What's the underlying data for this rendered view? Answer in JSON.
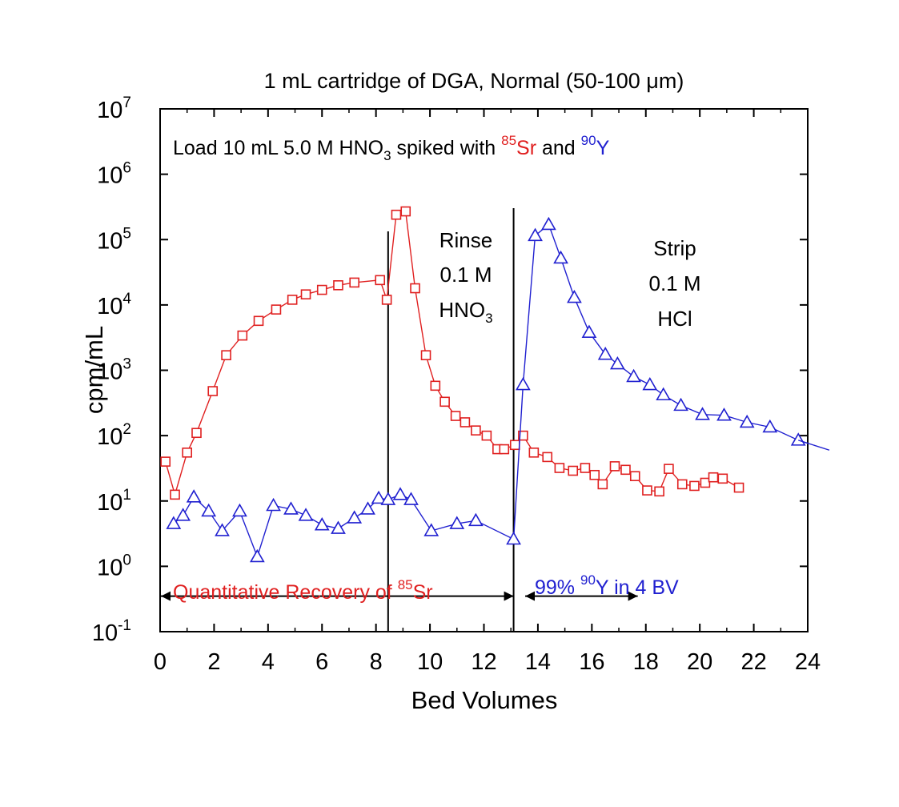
{
  "chart_data": {
    "type": "scatter",
    "title": "1 mL cartridge of DGA, Normal (50-100 μm)",
    "xlabel": "Bed Volumes",
    "ylabel": "cpm/mL",
    "xlim": [
      0,
      24
    ],
    "ylim": [
      0.1,
      10000000
    ],
    "yscale": "log",
    "x_ticks": [
      "0",
      "2",
      "4",
      "6",
      "8",
      "10",
      "12",
      "14",
      "16",
      "18",
      "20",
      "22",
      "24"
    ],
    "y_ticks": [
      {
        "base": "10",
        "exp": "-1"
      },
      {
        "base": "10",
        "exp": "0"
      },
      {
        "base": "10",
        "exp": "1"
      },
      {
        "base": "10",
        "exp": "2"
      },
      {
        "base": "10",
        "exp": "3"
      },
      {
        "base": "10",
        "exp": "4"
      },
      {
        "base": "10",
        "exp": "5"
      },
      {
        "base": "10",
        "exp": "6"
      },
      {
        "base": "10",
        "exp": "7"
      }
    ],
    "grid": false,
    "series": [
      {
        "color": "#e02020",
        "marker": "square",
        "points": [
          [
            0.2,
            40
          ],
          [
            0.55,
            12.5
          ],
          [
            1.0,
            55
          ],
          [
            1.35,
            110
          ],
          [
            1.95,
            480
          ],
          [
            2.45,
            1700
          ],
          [
            3.05,
            3400
          ],
          [
            3.65,
            5700
          ],
          [
            4.3,
            8500
          ],
          [
            4.9,
            12000
          ],
          [
            5.4,
            14500
          ],
          [
            6.0,
            17000
          ],
          [
            6.6,
            20000
          ],
          [
            7.2,
            22000
          ],
          [
            8.15,
            24000
          ],
          [
            8.4,
            12000
          ],
          [
            8.75,
            240000
          ],
          [
            9.1,
            270000
          ],
          [
            9.45,
            18000
          ],
          [
            9.85,
            1700
          ],
          [
            10.2,
            580
          ],
          [
            10.55,
            330
          ],
          [
            10.95,
            200
          ],
          [
            11.3,
            160
          ],
          [
            11.7,
            120
          ],
          [
            12.1,
            100
          ],
          [
            12.5,
            62
          ],
          [
            12.75,
            62
          ],
          [
            13.15,
            72
          ],
          [
            13.45,
            100
          ],
          [
            13.85,
            55
          ],
          [
            14.35,
            47
          ],
          [
            14.8,
            32
          ],
          [
            15.3,
            29
          ],
          [
            15.75,
            32
          ],
          [
            16.1,
            25
          ],
          [
            16.4,
            18
          ],
          [
            16.85,
            34
          ],
          [
            17.25,
            30
          ],
          [
            17.6,
            24
          ],
          [
            18.05,
            14.5
          ],
          [
            18.5,
            14
          ],
          [
            18.85,
            31
          ],
          [
            19.35,
            18
          ],
          [
            19.8,
            17
          ],
          [
            20.2,
            19
          ],
          [
            20.5,
            23
          ],
          [
            20.85,
            22
          ],
          [
            21.45,
            16
          ]
        ]
      },
      {
        "color": "#2020d0",
        "marker": "triangle",
        "points": [
          [
            0.5,
            4.5
          ],
          [
            0.85,
            6
          ],
          [
            1.25,
            11.5
          ],
          [
            1.8,
            7
          ],
          [
            2.3,
            3.5
          ],
          [
            2.95,
            7
          ],
          [
            3.6,
            1.4
          ],
          [
            4.2,
            8.5
          ],
          [
            4.85,
            7.5
          ],
          [
            5.4,
            6
          ],
          [
            6.0,
            4.3
          ],
          [
            6.6,
            3.8
          ],
          [
            7.2,
            5.5
          ],
          [
            7.7,
            7.5
          ],
          [
            8.1,
            11
          ],
          [
            8.45,
            10.5
          ],
          [
            8.9,
            12.5
          ],
          [
            9.3,
            10.5
          ],
          [
            10.05,
            3.5
          ],
          [
            11.0,
            4.5
          ],
          [
            11.7,
            5
          ],
          [
            13.1,
            2.6
          ],
          [
            13.45,
            600
          ],
          [
            13.9,
            115000
          ],
          [
            14.4,
            170000
          ],
          [
            14.85,
            52000
          ],
          [
            15.35,
            13000
          ],
          [
            15.9,
            3800
          ],
          [
            16.5,
            1750
          ],
          [
            16.95,
            1250
          ],
          [
            17.55,
            800
          ],
          [
            18.15,
            600
          ],
          [
            18.65,
            420
          ],
          [
            19.3,
            290
          ],
          [
            20.1,
            210
          ],
          [
            20.9,
            205
          ],
          [
            21.75,
            160
          ],
          [
            22.6,
            135
          ],
          [
            23.65,
            85
          ],
          [
            24.8,
            60
          ]
        ]
      }
    ],
    "annotations": {
      "load": {
        "pre": "Load 10 mL 5.0 M HNO",
        "sub": "3",
        "mid": " spiked with ",
        "sr_sup": "85",
        "sr": "Sr",
        "and": " and ",
        "y_sup": "90",
        "y": "Y"
      },
      "rinse": {
        "l1": "Rinse",
        "l2": "0.1 M",
        "l3_pre": "HNO",
        "l3_sub": "3"
      },
      "strip": {
        "l1": "Strip",
        "l2": "0.1 M",
        "l3": "HCl"
      },
      "recovery_sr": {
        "pre": "Quantitative Recovery of ",
        "sup": "85",
        "post": "Sr",
        "color": "#e02020"
      },
      "recovery_y": {
        "pre": "99% ",
        "sup": "90",
        "post": "Y in 4 BV",
        "color": "#2020d0"
      }
    },
    "vertical_lines_x": [
      8.45,
      13.1
    ],
    "arrows": [
      {
        "from": 0,
        "to": 13.1,
        "y": 0.35
      },
      {
        "from": 13.5,
        "to": 17.7,
        "y": 0.35
      }
    ]
  }
}
